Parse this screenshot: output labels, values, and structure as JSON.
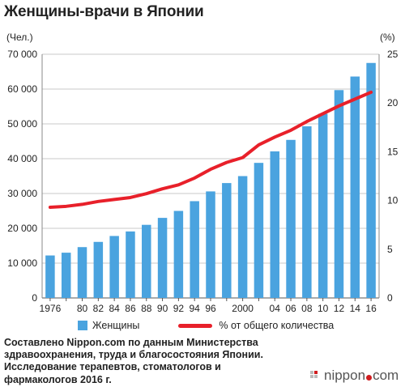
{
  "title": "Женщины-врачи в Японии",
  "source_text": "Составлено Nippon.com по данным Министерства здравоохранения, труда и благосостояния Японии. Исследование терапевтов, стоматологов и фармакологов 2016 г.",
  "brand": {
    "part1": "nippon",
    "part2": "com"
  },
  "chart_data": {
    "type": "bar",
    "left_unit": "(Чел.)",
    "right_unit": "(%)",
    "y_left": {
      "min": 0,
      "max": 70000,
      "step": 10000,
      "tick_labels": [
        "0",
        "10 000",
        "20 000",
        "30 000",
        "40 000",
        "50 000",
        "60 000",
        "70 000"
      ]
    },
    "y_right": {
      "min": 0,
      "max": 25,
      "step": 5,
      "tick_labels": [
        "0",
        "5",
        "10",
        "15",
        "20",
        "25"
      ]
    },
    "x_years": [
      1976,
      1978,
      1980,
      1982,
      1984,
      1986,
      1988,
      1990,
      1992,
      1994,
      1996,
      1998,
      2000,
      2002,
      2004,
      2006,
      2008,
      2010,
      2012,
      2014,
      2016
    ],
    "x_tick_labels": [
      "1976",
      "",
      "80",
      "82",
      "84",
      "86",
      "88",
      "90",
      "92",
      "94",
      "96",
      "",
      "2000",
      "",
      "04",
      "06",
      "08",
      "10",
      "12",
      "14",
      "16"
    ],
    "series": [
      {
        "name": "Женщины",
        "type": "bar",
        "axis": "left",
        "color": "#4aa3df",
        "values": [
          12200,
          13000,
          14600,
          16100,
          17800,
          19100,
          21000,
          23000,
          25000,
          27800,
          30600,
          33000,
          35000,
          38800,
          42100,
          45400,
          49300,
          52900,
          59700,
          63600,
          67500
        ]
      },
      {
        "name": "% от общего количества",
        "type": "line",
        "axis": "right",
        "color": "#e8202a",
        "values": [
          9.3,
          9.4,
          9.6,
          9.9,
          10.1,
          10.3,
          10.7,
          11.2,
          11.6,
          12.3,
          13.2,
          13.9,
          14.4,
          15.7,
          16.5,
          17.2,
          18.1,
          18.9,
          19.7,
          20.4,
          21.1
        ]
      }
    ]
  }
}
